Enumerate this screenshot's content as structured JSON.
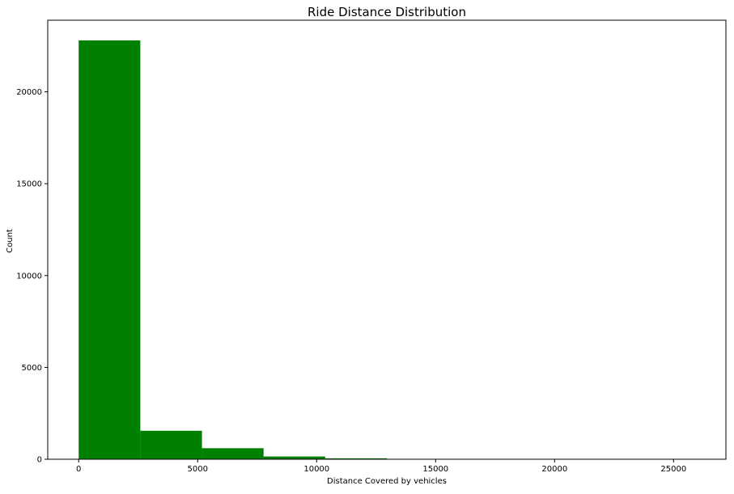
{
  "chart_data": {
    "type": "bar",
    "title": "Ride Distance Distribution",
    "xlabel": "Distance Covered by vehicles",
    "ylabel": "Count",
    "xlim": [
      -1300,
      27200
    ],
    "ylim": [
      0,
      23900
    ],
    "xticks": [
      0,
      5000,
      10000,
      15000,
      20000,
      25000
    ],
    "yticks": [
      0,
      5000,
      10000,
      15000,
      20000
    ],
    "bins": [
      {
        "x0": 0,
        "x1": 2590,
        "value": 22800
      },
      {
        "x0": 2590,
        "x1": 5180,
        "value": 1550
      },
      {
        "x0": 5180,
        "x1": 7770,
        "value": 600
      },
      {
        "x0": 7770,
        "x1": 10360,
        "value": 150
      },
      {
        "x0": 10360,
        "x1": 12950,
        "value": 50
      },
      {
        "x0": 12950,
        "x1": 15540,
        "value": 10
      },
      {
        "x0": 15540,
        "x1": 18130,
        "value": 3
      },
      {
        "x0": 18130,
        "x1": 20720,
        "value": 1
      },
      {
        "x0": 20720,
        "x1": 23310,
        "value": 1
      },
      {
        "x0": 23310,
        "x1": 25900,
        "value": 1
      }
    ],
    "bar_color": "#008000",
    "grid": false
  }
}
